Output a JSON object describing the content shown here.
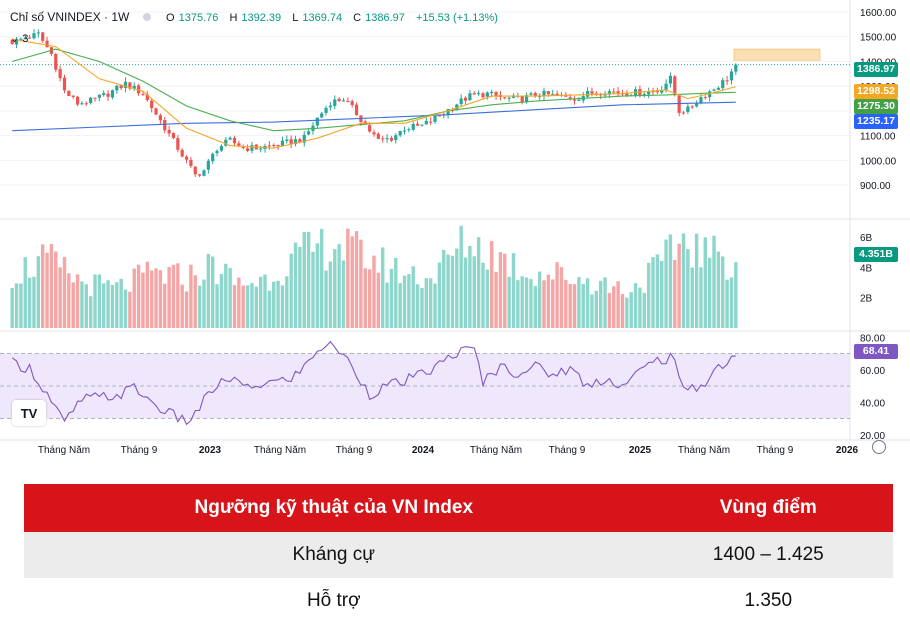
{
  "header": {
    "symbol": "Chỉ số VNINDEX · 1W",
    "open_label": "O",
    "open": "1375.76",
    "high_label": "H",
    "high": "1392.39",
    "low_label": "L",
    "low": "1369.74",
    "close_label": "C",
    "close": "1386.97",
    "change": "+15.53 (+1.13%)",
    "indicator_count": "3"
  },
  "logo_text": "TV",
  "colors": {
    "up": "#26a69a",
    "down": "#ef5350",
    "ma_short": "#f5a623",
    "ma_mid": "#4caf50",
    "ma_long": "#3f6fd9",
    "rsi": "#7e57c2",
    "highlight": "#fbd9a3",
    "table_header": "#d7141a"
  },
  "price_tags": [
    {
      "value": "1386.97",
      "color": "#089981"
    },
    {
      "value": "1298.52",
      "color": "#f5a623"
    },
    {
      "value": "1275.30",
      "color": "#43a047"
    },
    {
      "value": "1235.17",
      "color": "#2962ff"
    }
  ],
  "volume_tag": {
    "value": "4.351B",
    "color": "#089981"
  },
  "rsi_tag": {
    "value": "68.41",
    "color": "#7e57c2"
  },
  "chart_data": {
    "type": "candlestick",
    "price_axis": {
      "ticks": [
        "1600.00",
        "1500.00",
        "1400.00",
        "1300.00",
        "1200.00",
        "1100.00",
        "1000.00",
        "900.00"
      ],
      "ylim": [
        840,
        1600
      ]
    },
    "volume_axis": {
      "ticks": [
        "6B",
        "4B",
        "2B"
      ],
      "ylim": [
        0,
        6.8
      ]
    },
    "rsi_axis": {
      "ticks": [
        "80.00",
        "60.00",
        "40.00",
        "20.00"
      ],
      "ylim": [
        18,
        82
      ],
      "band": [
        30,
        70
      ]
    },
    "x_ticks": [
      "Tháng Năm",
      "Tháng 9",
      "2023",
      "Tháng Năm",
      "Tháng 9",
      "2024",
      "Tháng Năm",
      "Tháng 9",
      "2025",
      "Tháng Năm",
      "Tháng 9",
      "2026"
    ],
    "close_path": [
      [
        0,
        1480
      ],
      [
        6,
        1510
      ],
      [
        9,
        1430
      ],
      [
        12,
        1280
      ],
      [
        15,
        1230
      ],
      [
        18,
        1240
      ],
      [
        22,
        1270
      ],
      [
        26,
        1310
      ],
      [
        30,
        1270
      ],
      [
        34,
        1160
      ],
      [
        38,
        1050
      ],
      [
        42,
        940
      ],
      [
        44,
        960
      ],
      [
        47,
        1050
      ],
      [
        50,
        1080
      ],
      [
        53,
        1050
      ],
      [
        56,
        1050
      ],
      [
        60,
        1060
      ],
      [
        64,
        1075
      ],
      [
        67,
        1090
      ],
      [
        70,
        1170
      ],
      [
        73,
        1235
      ],
      [
        76,
        1250
      ],
      [
        79,
        1190
      ],
      [
        82,
        1120
      ],
      [
        84,
        1080
      ],
      [
        87,
        1090
      ],
      [
        90,
        1130
      ],
      [
        94,
        1140
      ],
      [
        98,
        1180
      ],
      [
        102,
        1230
      ],
      [
        105,
        1260
      ],
      [
        109,
        1270
      ],
      [
        113,
        1250
      ],
      [
        117,
        1250
      ],
      [
        121,
        1270
      ],
      [
        125,
        1260
      ],
      [
        129,
        1250
      ],
      [
        132,
        1270
      ],
      [
        136,
        1280
      ],
      [
        140,
        1275
      ],
      [
        144,
        1275
      ],
      [
        148,
        1280
      ],
      [
        151,
        1330
      ],
      [
        153,
        1200
      ],
      [
        155,
        1205
      ],
      [
        158,
        1255
      ],
      [
        161,
        1290
      ],
      [
        164,
        1330
      ],
      [
        166,
        1386.97
      ]
    ],
    "volume_path": [
      [
        0,
        3.6
      ],
      [
        8,
        4.5
      ],
      [
        16,
        3.0
      ],
      [
        24,
        2.6
      ],
      [
        32,
        3.6
      ],
      [
        40,
        3.3
      ],
      [
        46,
        4.1
      ],
      [
        52,
        2.9
      ],
      [
        58,
        3.2
      ],
      [
        66,
        4.8
      ],
      [
        74,
        5.6
      ],
      [
        82,
        4.6
      ],
      [
        88,
        3.8
      ],
      [
        96,
        3.3
      ],
      [
        104,
        5.7
      ],
      [
        110,
        5.0
      ],
      [
        118,
        3.7
      ],
      [
        126,
        3.5
      ],
      [
        134,
        3.0
      ],
      [
        142,
        2.5
      ],
      [
        150,
        4.5
      ],
      [
        154,
        5.9
      ],
      [
        158,
        5.0
      ],
      [
        162,
        4.7
      ],
      [
        166,
        4.35
      ]
    ],
    "rsi_path": [
      [
        0,
        64
      ],
      [
        4,
        61
      ],
      [
        8,
        45
      ],
      [
        12,
        27
      ],
      [
        16,
        42
      ],
      [
        20,
        43
      ],
      [
        24,
        44
      ],
      [
        28,
        49
      ],
      [
        32,
        40
      ],
      [
        36,
        33
      ],
      [
        40,
        28
      ],
      [
        42,
        33
      ],
      [
        46,
        48
      ],
      [
        50,
        55
      ],
      [
        54,
        48
      ],
      [
        58,
        52
      ],
      [
        62,
        53
      ],
      [
        66,
        58
      ],
      [
        70,
        73
      ],
      [
        74,
        75
      ],
      [
        78,
        62
      ],
      [
        82,
        45
      ],
      [
        86,
        50
      ],
      [
        90,
        53
      ],
      [
        94,
        57
      ],
      [
        98,
        63
      ],
      [
        102,
        71
      ],
      [
        106,
        72
      ],
      [
        108,
        53
      ],
      [
        112,
        62
      ],
      [
        116,
        58
      ],
      [
        120,
        62
      ],
      [
        124,
        57
      ],
      [
        128,
        61
      ],
      [
        132,
        50
      ],
      [
        136,
        55
      ],
      [
        140,
        50
      ],
      [
        144,
        59
      ],
      [
        148,
        66
      ],
      [
        152,
        68
      ],
      [
        154,
        46
      ],
      [
        158,
        50
      ],
      [
        162,
        62
      ],
      [
        166,
        68.41
      ]
    ],
    "ma_short_path": [
      [
        0,
        1490
      ],
      [
        10,
        1460
      ],
      [
        20,
        1330
      ],
      [
        30,
        1280
      ],
      [
        40,
        1130
      ],
      [
        50,
        1060
      ],
      [
        60,
        1050
      ],
      [
        70,
        1090
      ],
      [
        80,
        1150
      ],
      [
        90,
        1150
      ],
      [
        100,
        1200
      ],
      [
        110,
        1260
      ],
      [
        120,
        1260
      ],
      [
        130,
        1265
      ],
      [
        140,
        1270
      ],
      [
        150,
        1285
      ],
      [
        155,
        1250
      ],
      [
        160,
        1270
      ],
      [
        166,
        1298.52
      ]
    ],
    "ma_mid_path": [
      [
        0,
        1400
      ],
      [
        10,
        1450
      ],
      [
        20,
        1400
      ],
      [
        30,
        1320
      ],
      [
        40,
        1220
      ],
      [
        50,
        1160
      ],
      [
        60,
        1120
      ],
      [
        70,
        1130
      ],
      [
        80,
        1145
      ],
      [
        90,
        1160
      ],
      [
        100,
        1200
      ],
      [
        110,
        1225
      ],
      [
        120,
        1240
      ],
      [
        130,
        1250
      ],
      [
        140,
        1260
      ],
      [
        150,
        1265
      ],
      [
        160,
        1272
      ],
      [
        166,
        1275.3
      ]
    ],
    "ma_long_path": [
      [
        0,
        1120
      ],
      [
        20,
        1135
      ],
      [
        40,
        1150
      ],
      [
        60,
        1155
      ],
      [
        80,
        1170
      ],
      [
        100,
        1185
      ],
      [
        120,
        1205
      ],
      [
        140,
        1225
      ],
      [
        166,
        1235.17
      ]
    ],
    "resistance_zone": [
      1400,
      1425
    ]
  },
  "table": {
    "headers": [
      "Ngưỡng kỹ thuật của VN Index",
      "Vùng điểm"
    ],
    "rows": [
      [
        "Kháng cự",
        "1400 – 1.425"
      ],
      [
        "Hỗ trợ",
        "1.350"
      ]
    ]
  }
}
